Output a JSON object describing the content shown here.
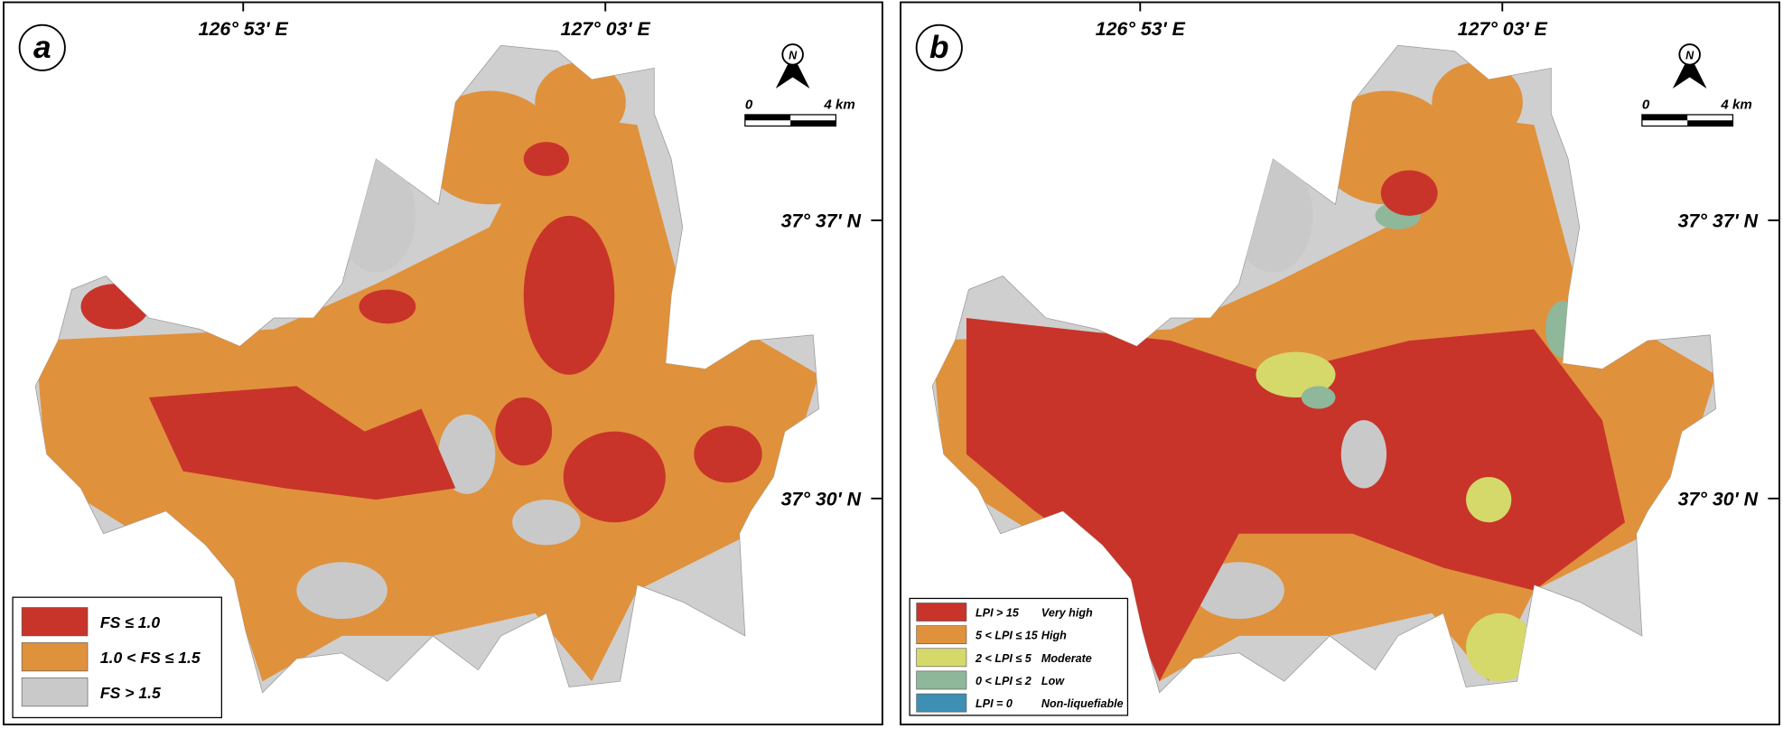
{
  "panels": [
    {
      "label": "a",
      "lon_labels": [
        "126° 53' E",
        "127° 03' E"
      ],
      "lat_labels": [
        "37° 37' N",
        "37° 30' N"
      ],
      "north": "N",
      "scale": [
        "0",
        "4 km"
      ],
      "legend": [
        {
          "label": "FS ≤ 1.0",
          "color": "#c8342a"
        },
        {
          "label": "1.0 < FS ≤ 1.5",
          "color": "#e0913c"
        },
        {
          "label": "FS > 1.5",
          "color": "#c9c9c9"
        }
      ]
    },
    {
      "label": "b",
      "lon_labels": [
        "126° 53' E",
        "127° 03' E"
      ],
      "lat_labels": [
        "37° 37' N",
        "37° 30' N"
      ],
      "north": "N",
      "scale": [
        "0",
        "4 km"
      ],
      "legend": [
        {
          "label": "LPI > 15",
          "class": "Very high",
          "color": "#c8342a"
        },
        {
          "label": "5 < LPI ≤ 15",
          "class": "High",
          "color": "#e0913c"
        },
        {
          "label": "2 < LPI ≤ 5",
          "class": "Moderate",
          "color": "#d4d96a"
        },
        {
          "label": "0 < LPI ≤ 2",
          "class": "Low",
          "color": "#8fb79a"
        },
        {
          "label": "LPI = 0",
          "class": "Non-liquefiable",
          "color": "#3d8fb3"
        }
      ]
    }
  ]
}
